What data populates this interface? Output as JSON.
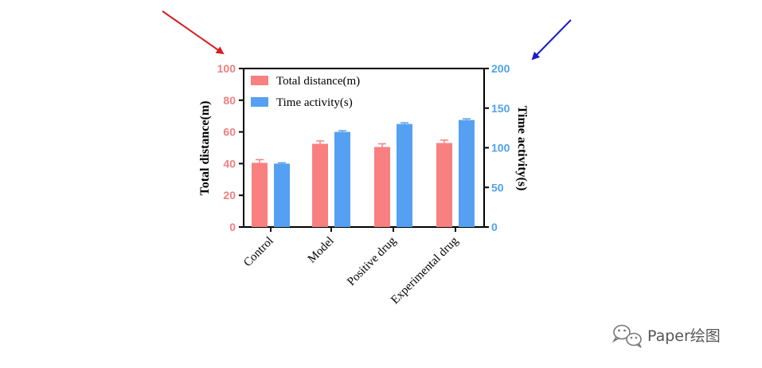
{
  "chart_data": {
    "type": "bar",
    "categories": [
      "Control",
      "Model",
      "Positive drug",
      "Experimental drug"
    ],
    "series": [
      {
        "name": "Total distance(m)",
        "axis": "left",
        "color": "#f88080",
        "values": [
          40.5,
          52.5,
          50.5,
          53
        ],
        "errors": [
          2,
          1.8,
          2,
          1.8
        ]
      },
      {
        "name": "Time activity(s)",
        "axis": "right",
        "color": "#55a0f2",
        "values": [
          80,
          120,
          130,
          135
        ],
        "errors": [
          1,
          1.5,
          1.5,
          1.5
        ]
      }
    ],
    "ylabel_left": "Total distance(m)",
    "ylabel_right": "Time activity(s)",
    "ylim_left": [
      0,
      100
    ],
    "yticks_left": [
      "0",
      "20",
      "40",
      "60",
      "80",
      "100"
    ],
    "ylim_right": [
      0,
      200
    ],
    "yticks_right": [
      "0",
      "50",
      "100",
      "150",
      "200"
    ],
    "left_axis_color": "#f08080",
    "right_axis_color": "#4fa3e8",
    "legend_placement": "top-left",
    "grid": false,
    "annotations": [
      {
        "type": "arrow",
        "color": "#d42020",
        "target": "left-axis"
      },
      {
        "type": "arrow",
        "color": "#1a1acc",
        "target": "right-axis"
      }
    ]
  },
  "watermark": {
    "text": "Paper绘图",
    "icon": "wechat-icon"
  }
}
